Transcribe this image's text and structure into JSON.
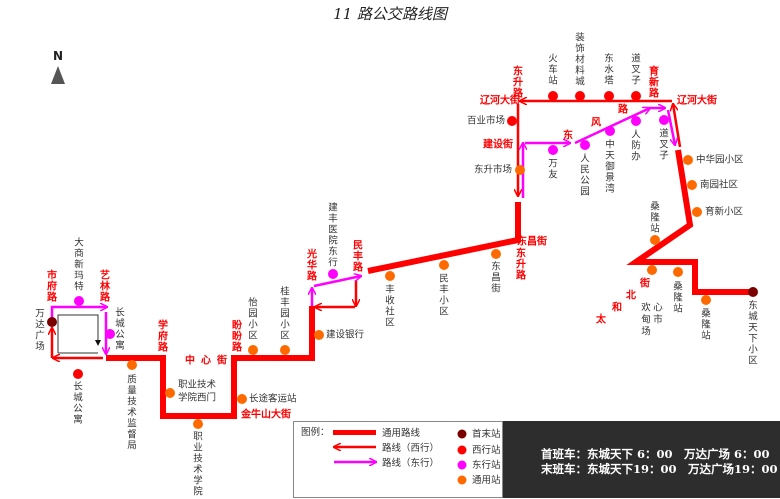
{
  "title": "11 路公交路线图",
  "north": "N",
  "colors": {
    "west": "#ff0000",
    "east": "#ff00ff",
    "common": "#ff6a00",
    "terminal": "#7a0000",
    "main_line": "#ff0000"
  },
  "roads": [
    "市府路",
    "艺林路",
    "学府路",
    "中心街",
    "盼盼路",
    "金牛山大街",
    "光华路",
    "民丰路",
    "东升路",
    "东昌街",
    "东升路",
    "辽河大街",
    "建设街",
    "东风路",
    "育新路",
    "辽河大街",
    "太和北街"
  ],
  "stations": [
    {
      "name": "万达广场",
      "type": "terminal"
    },
    {
      "name": "大商新玛特",
      "type": "east"
    },
    {
      "name": "长城公寓",
      "type": "east"
    },
    {
      "name": "长城公寓",
      "type": "west"
    },
    {
      "name": "质量技术监督局",
      "type": "common"
    },
    {
      "name": "职业技术学院西门",
      "type": "common"
    },
    {
      "name": "职业技术学院",
      "type": "common"
    },
    {
      "name": "怡园小区",
      "type": "common"
    },
    {
      "name": "长途客运站",
      "type": "common"
    },
    {
      "name": "桂丰园小区",
      "type": "common"
    },
    {
      "name": "建设银行",
      "type": "common"
    },
    {
      "name": "建丰医院东行",
      "type": "east"
    },
    {
      "name": "丰收社区",
      "type": "common"
    },
    {
      "name": "民丰小区",
      "type": "common"
    },
    {
      "name": "东昌街",
      "type": "common"
    },
    {
      "name": "东升市场",
      "type": "common"
    },
    {
      "name": "百业市场",
      "type": "west"
    },
    {
      "name": "万友",
      "type": "east"
    },
    {
      "name": "人民公园",
      "type": "east"
    },
    {
      "name": "中天御景湾",
      "type": "east"
    },
    {
      "name": "人防办",
      "type": "east"
    },
    {
      "name": "道叉子",
      "type": "east"
    },
    {
      "name": "火车站",
      "type": "west"
    },
    {
      "name": "装饰材料城",
      "type": "west"
    },
    {
      "name": "东水塔",
      "type": "west"
    },
    {
      "name": "道叉子",
      "type": "west"
    },
    {
      "name": "中华园小区",
      "type": "common"
    },
    {
      "name": "南园社区",
      "type": "common"
    },
    {
      "name": "育新小区",
      "type": "common"
    },
    {
      "name": "桑隆站",
      "type": "common"
    },
    {
      "name": "欢心甸市场",
      "type": "common"
    },
    {
      "name": "桑隆站",
      "type": "common"
    },
    {
      "name": "桑隆站",
      "type": "common"
    },
    {
      "name": "东城天下小区",
      "type": "terminal"
    }
  ],
  "legend": {
    "title": "图例：",
    "main_line": "通用路线",
    "west_line": "路线（西行）",
    "east_line": "路线（东行）",
    "terminal": "首末站",
    "west_stop": "西行站",
    "east_stop": "东行站",
    "common_stop": "通用站"
  },
  "schedule": {
    "first": "首班车：东城天下 6：00　万达广场 6：00",
    "last": "末班车：东城天下19：00　万达广场19：00"
  }
}
